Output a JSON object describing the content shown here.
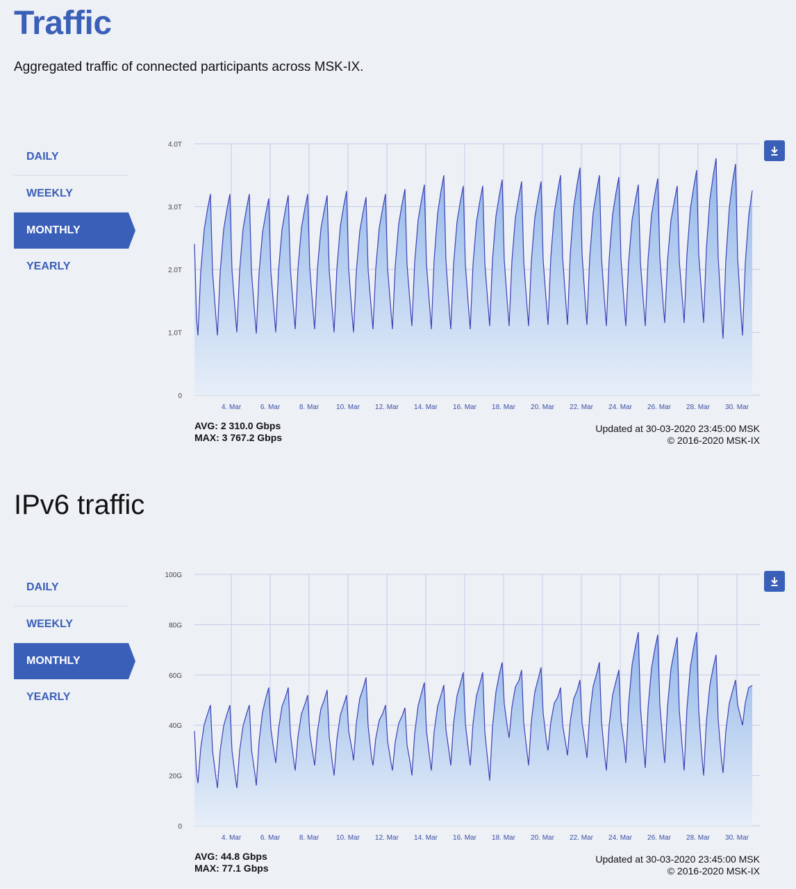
{
  "page": {
    "title": "Traffic",
    "subtitle": "Aggregated traffic of connected participants across MSK-IX.",
    "ipv6_title": "IPv6 traffic"
  },
  "period_nav": [
    "DAILY",
    "WEEKLY",
    "MONTHLY",
    "YEARLY"
  ],
  "active_period": "MONTHLY",
  "colors": {
    "accent": "#3a5fb8",
    "line": "#3b3fb5",
    "fill_top": "#8fb6ea",
    "fill_bottom": "#e7eef8",
    "grid": "#c5cae8"
  },
  "icons": {
    "download": "download-icon"
  },
  "charts": [
    {
      "stats": {
        "avg": "AVG: 2 310.0 Gbps",
        "max": "MAX: 3 767.2 Gbps"
      },
      "updated": "Updated at 30-03-2020 23:45:00 MSK",
      "copyright": "© 2016-2020 MSK-IX"
    },
    {
      "stats": {
        "avg": "AVG: 44.8 Gbps",
        "max": "MAX: 77.1 Gbps"
      },
      "updated": "Updated at 30-03-2020 23:45:00 MSK",
      "copyright": "© 2016-2020 MSK-IX"
    }
  ],
  "chart_data": [
    {
      "type": "area",
      "x_start": "2020-03-02",
      "xticks": [
        "4. Mar",
        "6. Mar",
        "8. Mar",
        "10. Mar",
        "12. Mar",
        "14. Mar",
        "16. Mar",
        "18. Mar",
        "20. Mar",
        "22. Mar",
        "24. Mar",
        "26. Mar",
        "28. Mar",
        "30. Mar"
      ],
      "yticks": [
        "0",
        "1.0T",
        "2.0T",
        "3.0T",
        "4.0T"
      ],
      "ylim": [
        0,
        4.0
      ],
      "y_unit": "Tbps",
      "grid": true,
      "daily_min": [
        0.95,
        0.95,
        1.0,
        0.98,
        1.0,
        1.05,
        1.05,
        1.0,
        1.0,
        1.05,
        1.05,
        1.1,
        1.05,
        1.05,
        1.05,
        1.1,
        1.1,
        1.1,
        1.12,
        1.12,
        1.12,
        1.1,
        1.1,
        1.1,
        1.15,
        1.15,
        1.15,
        0.9,
        0.95
      ],
      "daily_max": [
        3.2,
        3.2,
        3.2,
        3.13,
        3.18,
        3.2,
        3.18,
        3.25,
        3.15,
        3.2,
        3.28,
        3.35,
        3.5,
        3.33,
        3.33,
        3.43,
        3.4,
        3.4,
        3.5,
        3.62,
        3.5,
        3.47,
        3.35,
        3.45,
        3.33,
        3.58,
        3.77,
        3.68,
        3.5
      ]
    },
    {
      "type": "area",
      "x_start": "2020-03-02",
      "xticks": [
        "4. Mar",
        "6. Mar",
        "8. Mar",
        "10. Mar",
        "12. Mar",
        "14. Mar",
        "16. Mar",
        "18. Mar",
        "20. Mar",
        "22. Mar",
        "24. Mar",
        "26. Mar",
        "28. Mar",
        "30. Mar"
      ],
      "yticks": [
        "0",
        "20G",
        "40G",
        "60G",
        "80G",
        "100G"
      ],
      "ylim": [
        0,
        100
      ],
      "y_unit": "Gbps",
      "grid": true,
      "daily_min": [
        17,
        15,
        15,
        16,
        25,
        22,
        24,
        20,
        26,
        24,
        22,
        20,
        22,
        24,
        24,
        18,
        35,
        24,
        30,
        28,
        27,
        22,
        25,
        23,
        25,
        22,
        20,
        21,
        40
      ],
      "daily_max": [
        48,
        48,
        48,
        55,
        55,
        52,
        54,
        52,
        59,
        48,
        47,
        57,
        56,
        61,
        61,
        65,
        62,
        63,
        55,
        58,
        65,
        62,
        77,
        76,
        75,
        77,
        68,
        58,
        60
      ]
    }
  ]
}
